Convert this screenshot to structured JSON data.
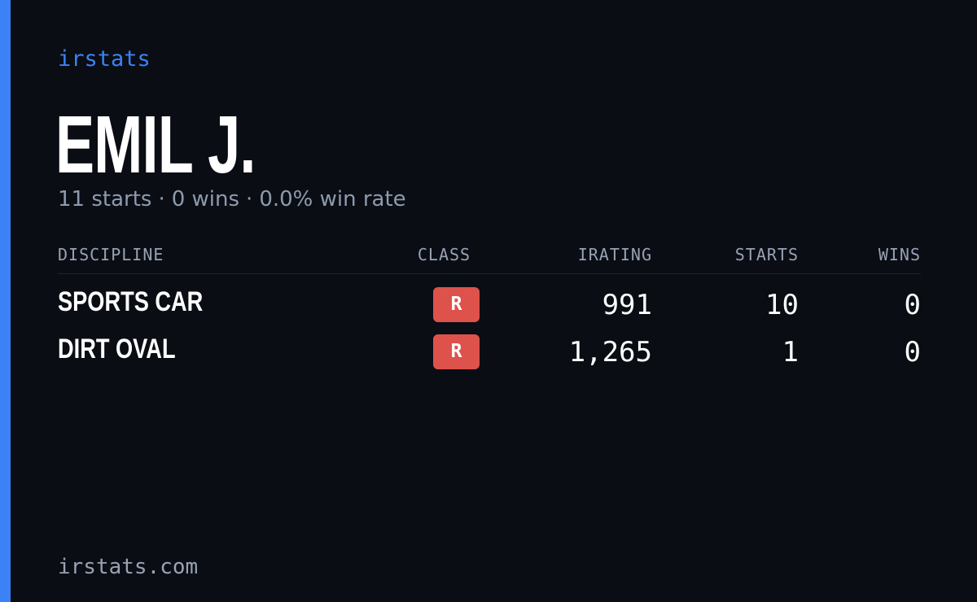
{
  "brand": "irstats",
  "driver": {
    "name": "EMIL J.",
    "summary": {
      "starts": "11 starts",
      "wins": "0 wins",
      "win_rate": "0.0% win rate",
      "separator": "·"
    }
  },
  "table": {
    "headers": {
      "discipline": "DISCIPLINE",
      "class": "CLASS",
      "irating": "IRATING",
      "starts": "STARTS",
      "wins": "WINS"
    },
    "rows": [
      {
        "discipline": "SPORTS CAR",
        "class": "R",
        "irating": "991",
        "starts": "10",
        "wins": "0"
      },
      {
        "discipline": "DIRT OVAL",
        "class": "R",
        "irating": "1,265",
        "starts": "1",
        "wins": "0"
      }
    ]
  },
  "footer": "irstats.com",
  "colors": {
    "accent": "#3b82f6",
    "background": "#0a0d14",
    "class_r_badge": "#de524c",
    "muted_text": "#8e9aae"
  }
}
